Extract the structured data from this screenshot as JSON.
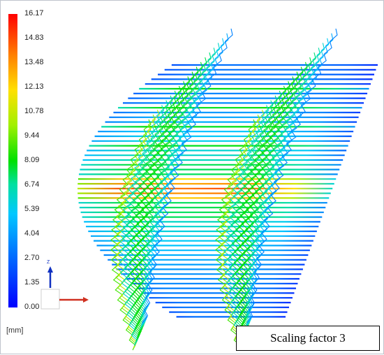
{
  "colorbar": {
    "ticks": [
      "16.17",
      "14.83",
      "13.48",
      "12.13",
      "10.78",
      "9.44",
      "8.09",
      "6.74",
      "5.39",
      "4.04",
      "2.70",
      "1.35",
      "0.00"
    ],
    "min": 0.0,
    "max": 16.17,
    "unit": "[mm]",
    "colors": [
      "#0000ff",
      "#0070ff",
      "#00c8ff",
      "#00e0a0",
      "#00e000",
      "#a0f000",
      "#ffe000",
      "#ff8000",
      "#ff0000"
    ]
  },
  "axis_triad": {
    "z_label": "Z"
  },
  "caption": "Scaling factor 3"
}
